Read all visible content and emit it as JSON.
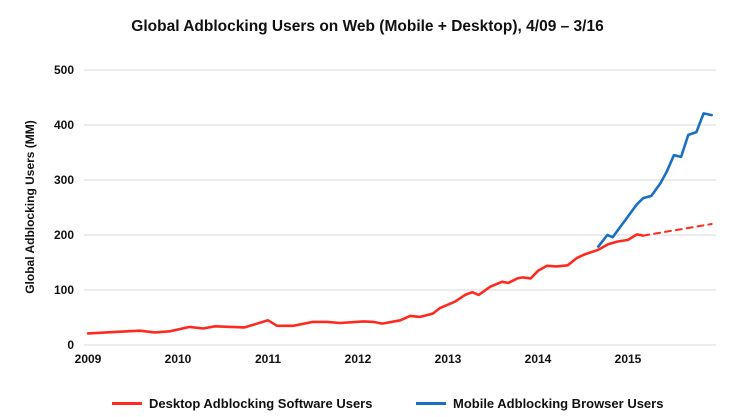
{
  "chart_data": {
    "type": "line",
    "title": "Global Adblocking Users on Web (Mobile + Desktop), 4/09 – 3/16",
    "xlabel": "",
    "ylabel": "Global Adblocking Users (MM)",
    "xlim": [
      2009,
      2016
    ],
    "ylim": [
      0,
      500
    ],
    "xticks": [
      "2009",
      "2010",
      "2011",
      "2012",
      "2013",
      "2014",
      "2015"
    ],
    "yticks": [
      "0",
      "100",
      "200",
      "300",
      "400",
      "500"
    ],
    "grid": true,
    "legend_position": "bottom",
    "series": [
      {
        "name": "Desktop Adblocking Software Users",
        "color": "#ff2a1f",
        "x": [
          2009.0,
          2009.33,
          2009.58,
          2009.74,
          2009.91,
          2010.13,
          2010.28,
          2010.41,
          2010.74,
          2011.0,
          2011.1,
          2011.28,
          2011.5,
          2011.66,
          2011.8,
          2012.06,
          2012.17,
          2012.27,
          2012.47,
          2012.58,
          2012.69,
          2012.83,
          2012.91,
          2013.08,
          2013.19,
          2013.27,
          2013.34,
          2013.47,
          2013.6,
          2013.67,
          2013.77,
          2013.83,
          2013.92,
          2014.0,
          2014.1,
          2014.21,
          2014.33,
          2014.43,
          2014.52,
          2014.67,
          2014.78,
          2014.88,
          2015.0,
          2015.1,
          2015.17
        ],
        "y": [
          21,
          24,
          26,
          23,
          25,
          33,
          30,
          34,
          32,
          45,
          35,
          35,
          42,
          42,
          40,
          43,
          42,
          39,
          45,
          53,
          51,
          57,
          67,
          79,
          91,
          96,
          91,
          106,
          115,
          113,
          121,
          123,
          121,
          135,
          144,
          143,
          145,
          158,
          165,
          173,
          183,
          188,
          191,
          201,
          199
        ]
      },
      {
        "name": "Desktop Adblocking Software Users (projected)",
        "color": "#ff2a1f",
        "dashed": true,
        "x": [
          2015.17,
          2015.93
        ],
        "y": [
          199,
          220
        ]
      },
      {
        "name": "Mobile Adblocking Browser Users",
        "color": "#1a6fc4",
        "x": [
          2014.67,
          2014.77,
          2014.83,
          2014.97,
          2015.1,
          2015.17,
          2015.26,
          2015.36,
          2015.43,
          2015.51,
          2015.59,
          2015.67,
          2015.76,
          2015.84,
          2015.93
        ],
        "y": [
          179,
          200,
          196,
          227,
          256,
          267,
          271,
          294,
          315,
          345,
          342,
          382,
          387,
          421,
          418
        ]
      }
    ]
  },
  "legend": [
    {
      "label": "Desktop Adblocking Software Users",
      "color": "#ff2a1f"
    },
    {
      "label": "Mobile Adblocking Browser Users",
      "color": "#1a6fc4"
    }
  ]
}
